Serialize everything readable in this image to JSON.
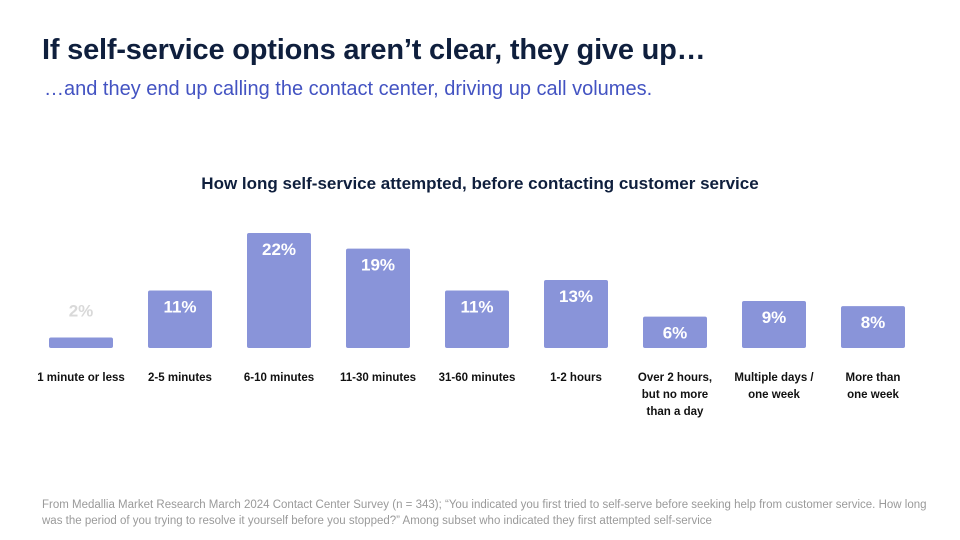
{
  "slide": {
    "title": "If self-service options aren’t clear, they give up…",
    "subtitle": "…and they end up calling the contact center, driving up call volumes.",
    "footnote": "From Medallia Market Research March 2024 Contact Center Survey (n = 343); “You indicated you first tried to self-serve before seeking help from customer service.  How long was the period of you trying to resolve it yourself before you stopped?” Among subset who indicated they first attempted self-service"
  },
  "colors": {
    "bar": "#8994d9",
    "label_inside": "#ffffff",
    "label_outside": "#d9d9d9",
    "title": "#0f1f3d",
    "subtitle": "#4353c2"
  },
  "chart_data": {
    "type": "bar",
    "title": "How long self-service attempted, before contacting customer service",
    "categories": [
      "1 minute or less",
      "2-5 minutes",
      "6-10 minutes",
      "11-30 minutes",
      "31-60 minutes",
      "1-2 hours",
      "Over 2 hours,\nbut no more\nthan a day",
      "Multiple days /\none week",
      "More than\none week"
    ],
    "values": [
      2,
      11,
      22,
      19,
      11,
      13,
      6,
      9,
      8
    ],
    "data_labels": [
      "2%",
      "11%",
      "22%",
      "19%",
      "11%",
      "13%",
      "6%",
      "9%",
      "8%"
    ],
    "unit": "%",
    "xlabel": "",
    "ylabel": "",
    "ylim": [
      0,
      22
    ],
    "grid": false,
    "legend": "none"
  }
}
